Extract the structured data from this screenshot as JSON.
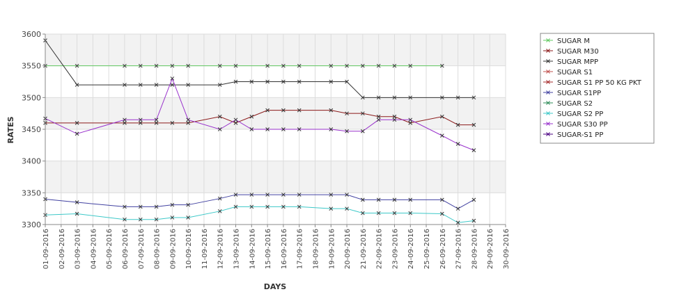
{
  "chart_data": {
    "type": "line",
    "xlabel": "DAYS",
    "ylabel": "RATES",
    "ylim": [
      3300,
      3600
    ],
    "yticks": [
      3300,
      3350,
      3400,
      3450,
      3500,
      3550,
      3600
    ],
    "grid": true,
    "legend_position": "right",
    "x": [
      "01-09-2016",
      "02-09-2016",
      "03-09-2016",
      "04-09-2016",
      "05-09-2016",
      "06-09-2016",
      "07-09-2016",
      "08-09-2016",
      "09-09-2016",
      "10-09-2016",
      "11-09-2016",
      "12-09-2016",
      "13-09-2016",
      "14-09-2016",
      "15-09-2016",
      "16-09-2016",
      "17-09-2016",
      "18-09-2016",
      "19-09-2016",
      "20-09-2016",
      "21-09-2016",
      "22-09-2016",
      "23-09-2016",
      "24-09-2016",
      "25-09-2016",
      "26-09-2016",
      "27-09-2016",
      "28-09-2016",
      "29-09-2016",
      "30-09-2016"
    ],
    "series": [
      {
        "name": "SUGAR M",
        "color": "#5fc85f",
        "points": [
          [
            0,
            3550
          ],
          [
            2,
            3550
          ],
          [
            5,
            3550
          ],
          [
            6,
            3550
          ],
          [
            7,
            3550
          ],
          [
            8,
            3550
          ],
          [
            9,
            3550
          ],
          [
            11,
            3550
          ],
          [
            12,
            3550
          ],
          [
            14,
            3550
          ],
          [
            15,
            3550
          ],
          [
            16,
            3550
          ],
          [
            18,
            3550
          ],
          [
            19,
            3550
          ],
          [
            20,
            3550
          ],
          [
            21,
            3550
          ],
          [
            22,
            3550
          ],
          [
            23,
            3550
          ],
          [
            25,
            3550
          ]
        ]
      },
      {
        "name": "SUGAR M30",
        "color": "#8b1a1a",
        "points": [
          [
            0,
            3460
          ],
          [
            2,
            3460
          ],
          [
            5,
            3460
          ],
          [
            6,
            3460
          ],
          [
            7,
            3460
          ],
          [
            8,
            3460
          ],
          [
            9,
            3460
          ],
          [
            11,
            3470
          ],
          [
            12,
            3460
          ],
          [
            13,
            3470
          ],
          [
            14,
            3480
          ],
          [
            15,
            3480
          ],
          [
            16,
            3480
          ],
          [
            18,
            3480
          ],
          [
            19,
            3475
          ],
          [
            20,
            3475
          ],
          [
            21,
            3470
          ],
          [
            22,
            3470
          ],
          [
            23,
            3460
          ],
          [
            25,
            3470
          ],
          [
            26,
            3457
          ],
          [
            27,
            3457
          ]
        ]
      },
      {
        "name": "SUGAR MPP",
        "color": "#333333",
        "points": [
          [
            0,
            3590
          ],
          [
            2,
            3520
          ],
          [
            5,
            3520
          ],
          [
            6,
            3520
          ],
          [
            7,
            3520
          ],
          [
            8,
            3520
          ],
          [
            9,
            3520
          ],
          [
            11,
            3520
          ],
          [
            12,
            3525
          ],
          [
            13,
            3525
          ],
          [
            14,
            3525
          ],
          [
            15,
            3525
          ],
          [
            16,
            3525
          ],
          [
            18,
            3525
          ],
          [
            19,
            3525
          ],
          [
            20,
            3500
          ],
          [
            21,
            3500
          ],
          [
            22,
            3500
          ],
          [
            23,
            3500
          ],
          [
            25,
            3500
          ],
          [
            26,
            3500
          ],
          [
            27,
            3500
          ]
        ]
      },
      {
        "name": "SUGAR S1",
        "color": "#c0504d",
        "points": []
      },
      {
        "name": "SUGAR S1 PP 50 KG PKT",
        "color": "#a52a2a",
        "points": []
      },
      {
        "name": "SUGAR S1PP",
        "color": "#4040a0",
        "points": [
          [
            0,
            3340
          ],
          [
            2,
            3335
          ],
          [
            5,
            3328
          ],
          [
            6,
            3328
          ],
          [
            7,
            3328
          ],
          [
            8,
            3331
          ],
          [
            9,
            3331
          ],
          [
            11,
            3341
          ],
          [
            12,
            3347
          ],
          [
            13,
            3347
          ],
          [
            14,
            3347
          ],
          [
            15,
            3347
          ],
          [
            16,
            3347
          ],
          [
            18,
            3347
          ],
          [
            19,
            3347
          ],
          [
            20,
            3339
          ],
          [
            21,
            3339
          ],
          [
            22,
            3339
          ],
          [
            23,
            3339
          ],
          [
            25,
            3339
          ],
          [
            26,
            3325
          ],
          [
            27,
            3339
          ]
        ]
      },
      {
        "name": "SUGAR S2",
        "color": "#2e8b57",
        "points": []
      },
      {
        "name": "SUGAR S2 PP",
        "color": "#3cc8c8",
        "points": [
          [
            0,
            3315
          ],
          [
            2,
            3317
          ],
          [
            5,
            3308
          ],
          [
            6,
            3308
          ],
          [
            7,
            3308
          ],
          [
            8,
            3311
          ],
          [
            9,
            3311
          ],
          [
            11,
            3321
          ],
          [
            12,
            3328
          ],
          [
            13,
            3328
          ],
          [
            14,
            3328
          ],
          [
            15,
            3328
          ],
          [
            16,
            3328
          ],
          [
            18,
            3325
          ],
          [
            19,
            3325
          ],
          [
            20,
            3318
          ],
          [
            21,
            3318
          ],
          [
            22,
            3318
          ],
          [
            23,
            3318
          ],
          [
            25,
            3317
          ],
          [
            26,
            3303
          ],
          [
            27,
            3306
          ]
        ]
      },
      {
        "name": "SUGAR S30 PP",
        "color": "#9932cc",
        "points": [
          [
            0,
            3467
          ],
          [
            2,
            3443
          ],
          [
            5,
            3465
          ],
          [
            6,
            3465
          ],
          [
            7,
            3465
          ],
          [
            8,
            3530
          ],
          [
            9,
            3465
          ],
          [
            11,
            3450
          ],
          [
            12,
            3465
          ],
          [
            13,
            3450
          ],
          [
            14,
            3450
          ],
          [
            15,
            3450
          ],
          [
            16,
            3450
          ],
          [
            18,
            3450
          ],
          [
            19,
            3447
          ],
          [
            20,
            3447
          ],
          [
            21,
            3465
          ],
          [
            22,
            3465
          ],
          [
            23,
            3465
          ],
          [
            25,
            3440
          ],
          [
            26,
            3427
          ],
          [
            27,
            3417
          ]
        ]
      },
      {
        "name": "SUGAR-S1 PP",
        "color": "#4b0082",
        "points": []
      }
    ]
  }
}
